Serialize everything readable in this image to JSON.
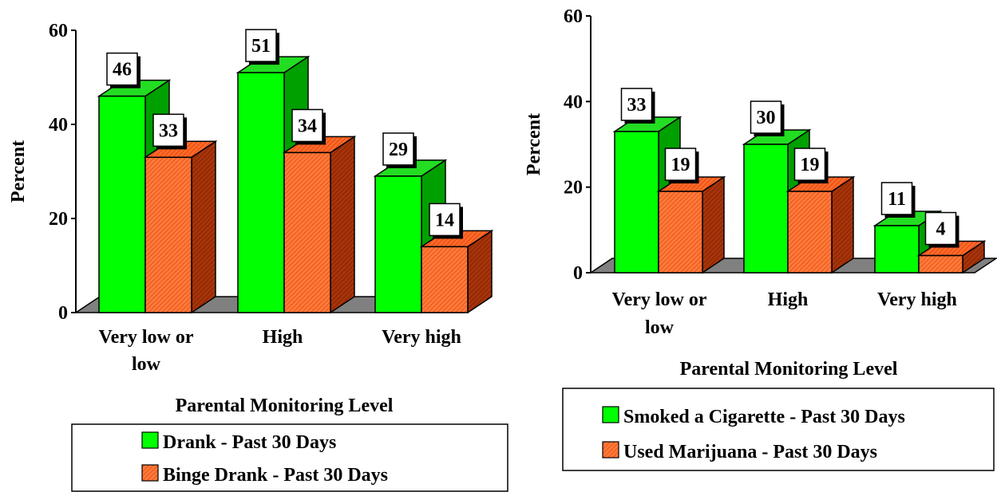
{
  "chart_data": [
    {
      "type": "bar",
      "title": "",
      "xlabel": "Parental Monitoring Level",
      "ylabel": "Percent",
      "ylim": [
        0,
        60
      ],
      "yticks": [
        "0",
        "20",
        "40",
        "60"
      ],
      "categories": [
        [
          "Very low or",
          "low"
        ],
        [
          "High"
        ],
        [
          "Very high"
        ]
      ],
      "series": [
        {
          "name": "Drank - Past 30 Days",
          "values": [
            46,
            51,
            29
          ],
          "color": "#00ff00"
        },
        {
          "name": "Binge Drank - Past 30 Days",
          "values": [
            33,
            34,
            14
          ],
          "color": "#ff6a2a"
        }
      ],
      "legend": "bottom",
      "grid": false,
      "style": "3d"
    },
    {
      "type": "bar",
      "title": "",
      "xlabel": "Parental Monitoring Level",
      "ylabel": "Percent",
      "ylim": [
        0,
        60
      ],
      "yticks": [
        "0",
        "20",
        "40",
        "60"
      ],
      "categories": [
        [
          "Very low or",
          "low"
        ],
        [
          "High"
        ],
        [
          "Very high"
        ]
      ],
      "series": [
        {
          "name": "Smoked a Cigarette - Past 30 Days",
          "values": [
            33,
            30,
            11
          ],
          "color": "#00ff00"
        },
        {
          "name": "Used Marijuana - Past 30 Days",
          "values": [
            19,
            19,
            4
          ],
          "color": "#ff6a2a"
        }
      ],
      "legend": "bottom",
      "grid": false,
      "style": "3d"
    }
  ]
}
